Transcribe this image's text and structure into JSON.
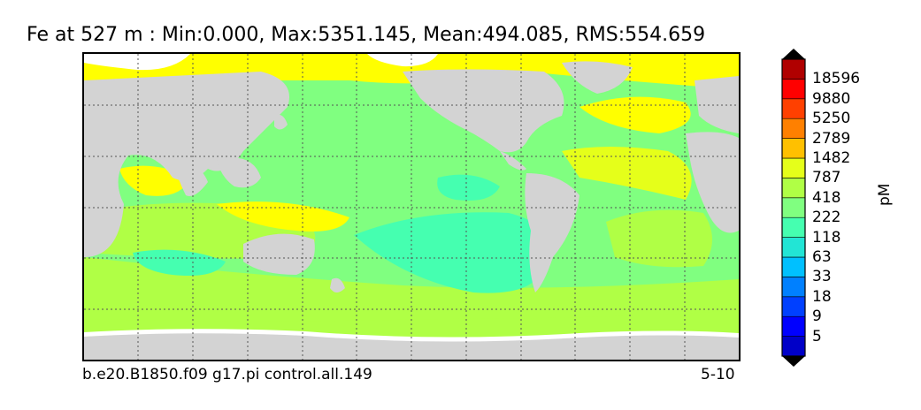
{
  "title": "Fe at 527 m : Min:0.000, Max:5351.145, Mean:494.085, RMS:554.659",
  "footer": {
    "run_name": "b.e20.B1850.f09 g17.pi control.all.149",
    "period": "5-10"
  },
  "colorbar": {
    "unit": "pM",
    "ticks": [
      "5",
      "9",
      "18",
      "33",
      "63",
      "118",
      "222",
      "418",
      "787",
      "1482",
      "2789",
      "5250",
      "9880",
      "18596"
    ],
    "colors": [
      "#00007f",
      "#0000c8",
      "#0000ff",
      "#0040ff",
      "#0080ff",
      "#00c0ff",
      "#22e5d5",
      "#45ffb0",
      "#80ff80",
      "#b0ff45",
      "#e5ff1a",
      "#ffc000",
      "#ff8000",
      "#ff4000",
      "#ff0000",
      "#b00000",
      "#800000"
    ]
  },
  "map_colors": {
    "land": "#d3d3d3",
    "ice": "#ffffff",
    "level_63_118": "#45ffb0",
    "level_118_222": "#80ff80",
    "level_222_418": "#b0ff45",
    "level_418_787": "#e5ff1a",
    "level_787_1482": "#ffff00"
  }
}
